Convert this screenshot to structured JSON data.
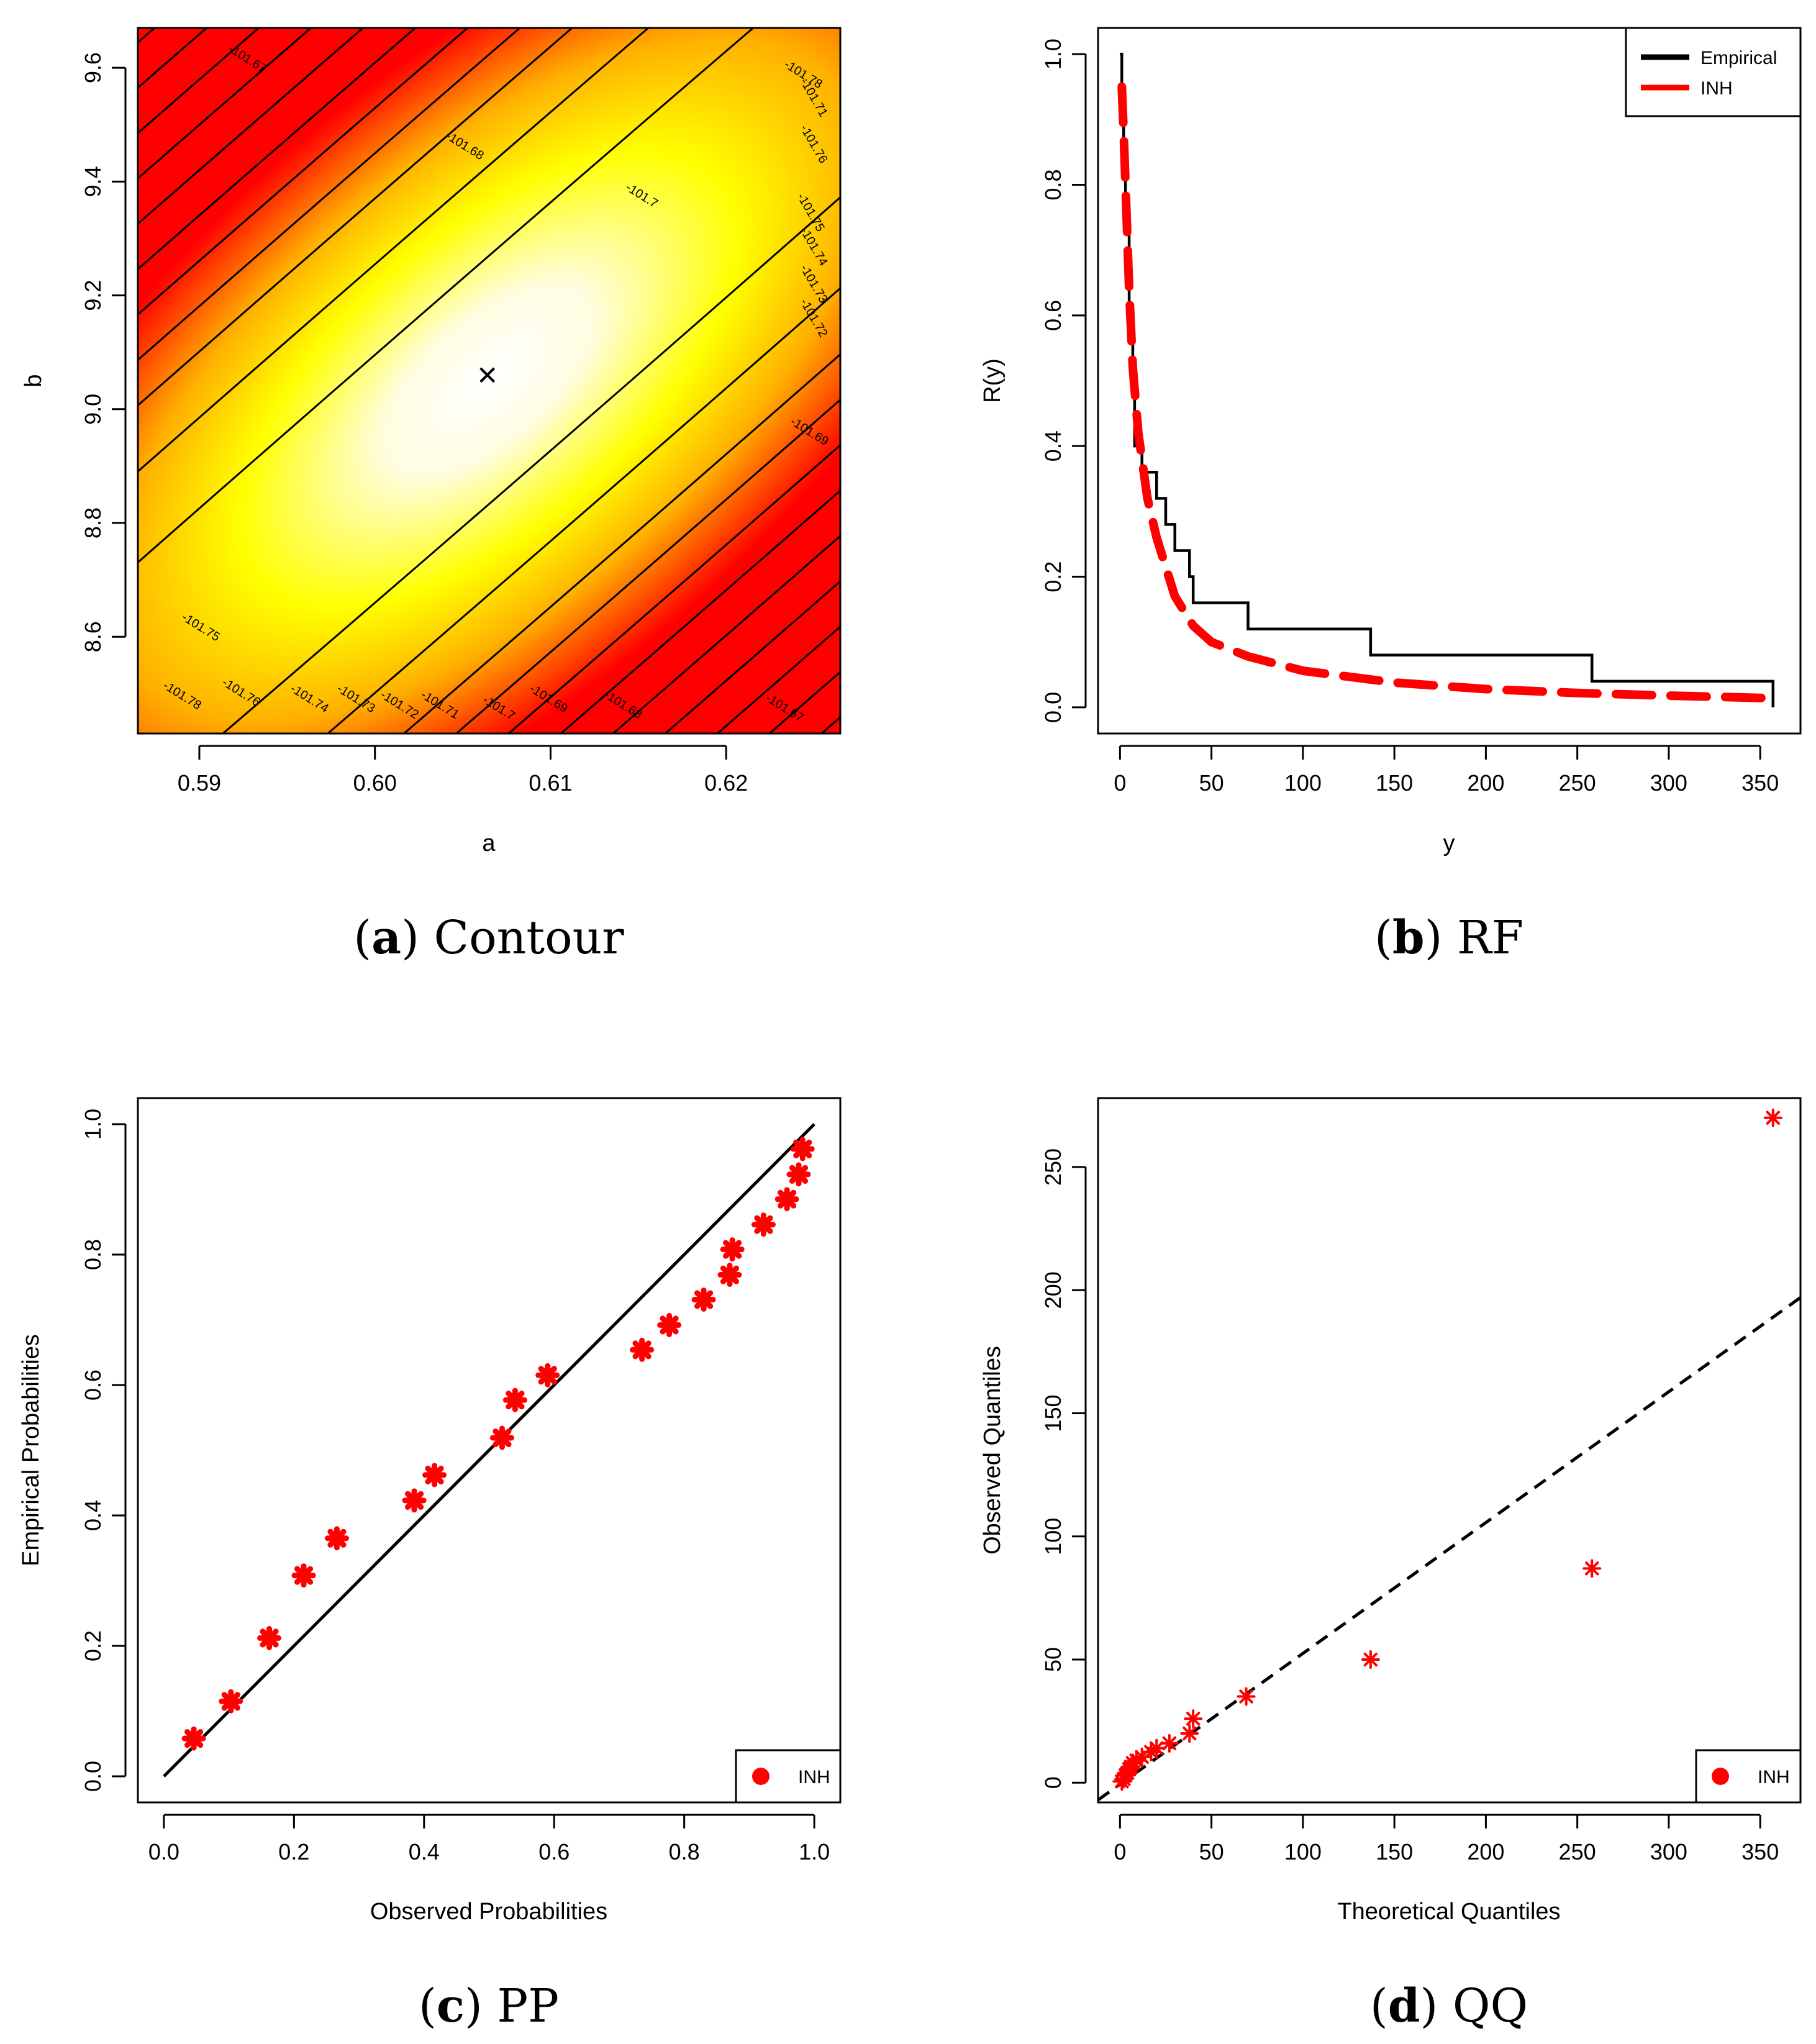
{
  "chart_data": [
    {
      "type": "contour",
      "caption": {
        "letter": "a",
        "text": "Contour"
      },
      "xlabel": "a",
      "ylabel": "b",
      "xlim": [
        0.5865,
        0.6265
      ],
      "ylim": [
        8.43,
        9.67
      ],
      "xticks": [
        0.59,
        0.6,
        0.61,
        0.62
      ],
      "yticks": [
        8.6,
        8.8,
        9.0,
        9.2,
        9.4,
        9.6
      ],
      "optimum": {
        "a": 0.6064,
        "b": 9.06
      },
      "colors": {
        "low": "#ffffff",
        "mid": "#ffff00",
        "high": "#ff0000"
      },
      "contour_labels": [
        "-101.67",
        "-101.68",
        "-101.69",
        "-101.7",
        "-101.71",
        "-101.72",
        "-101.73",
        "-101.74",
        "-101.75",
        "-101.76",
        "-101.78"
      ]
    },
    {
      "type": "line",
      "caption": {
        "letter": "b",
        "text": "RF"
      },
      "xlabel": "y",
      "ylabel": "R(y)",
      "xlim": [
        -12,
        372
      ],
      "ylim": [
        -0.04,
        1.04
      ],
      "xticks": [
        0,
        50,
        100,
        150,
        200,
        250,
        300,
        350
      ],
      "yticks": [
        0.0,
        0.2,
        0.4,
        0.6,
        0.8,
        1.0
      ],
      "legend_position": "top-right",
      "series": [
        {
          "name": "Empirical",
          "style": "step",
          "color": "#000000",
          "x": [
            1,
            2,
            3,
            5,
            7,
            8,
            9,
            12,
            14,
            17,
            20,
            25,
            30,
            38,
            40,
            70,
            137,
            258,
            357
          ],
          "y": [
            0.92,
            0.84,
            0.76,
            0.6,
            0.48,
            0.4,
            0.4,
            0.36,
            0.36,
            0.36,
            0.32,
            0.28,
            0.24,
            0.2,
            0.16,
            0.12,
            0.08,
            0.04,
            0.0
          ]
        },
        {
          "name": "INH",
          "style": "dashed",
          "color": "#ff0000",
          "x": [
            1,
            2,
            3,
            5,
            7,
            10,
            15,
            20,
            30,
            40,
            50,
            70,
            100,
            150,
            200,
            250,
            300,
            357
          ],
          "y": [
            0.95,
            0.88,
            0.8,
            0.64,
            0.52,
            0.42,
            0.32,
            0.26,
            0.17,
            0.125,
            0.1,
            0.078,
            0.056,
            0.038,
            0.028,
            0.022,
            0.018,
            0.014
          ]
        }
      ]
    },
    {
      "type": "scatter",
      "caption": {
        "letter": "c",
        "text": "PP"
      },
      "xlabel": "Observed Probabilities",
      "ylabel": "Empirical Probabilities",
      "xlim": [
        -0.04,
        1.04
      ],
      "ylim": [
        -0.04,
        1.04
      ],
      "xticks": [
        0.0,
        0.2,
        0.4,
        0.6,
        0.8,
        1.0
      ],
      "yticks": [
        0.0,
        0.2,
        0.4,
        0.6,
        0.8,
        1.0
      ],
      "legend_position": "bottom-right",
      "reference_line": {
        "x": [
          0,
          1
        ],
        "y": [
          0,
          1
        ]
      },
      "series": [
        {
          "name": "INH",
          "color": "#ff0000",
          "x": [
            0.046,
            0.103,
            0.162,
            0.215,
            0.266,
            0.385,
            0.416,
            0.52,
            0.54,
            0.59,
            0.735,
            0.777,
            0.83,
            0.87,
            0.874,
            0.922,
            0.958,
            0.976,
            0.982
          ],
          "y": [
            0.058,
            0.115,
            0.212,
            0.308,
            0.365,
            0.423,
            0.462,
            0.519,
            0.577,
            0.615,
            0.654,
            0.692,
            0.731,
            0.769,
            0.808,
            0.846,
            0.885,
            0.923,
            0.962
          ]
        }
      ]
    },
    {
      "type": "scatter",
      "caption": {
        "letter": "d",
        "text": "QQ"
      },
      "xlabel": "Theoretical Quantiles",
      "ylabel": "Observed Quantiles",
      "xlim": [
        -12,
        372
      ],
      "ylim": [
        -8,
        278
      ],
      "xticks": [
        0,
        50,
        100,
        150,
        200,
        250,
        300,
        350
      ],
      "yticks": [
        0,
        50,
        100,
        150,
        200,
        250
      ],
      "legend_position": "bottom-right",
      "reference_line": {
        "x": [
          -12,
          372
        ],
        "y": [
          -7.0,
          197.0
        ]
      },
      "series": [
        {
          "name": "INH",
          "color": "#ff0000",
          "x": [
            1,
            2,
            3,
            4,
            5,
            6,
            7,
            9,
            12,
            17,
            20,
            27,
            38,
            40,
            69,
            137,
            258,
            357
          ],
          "y": [
            0.5,
            1.5,
            3,
            4,
            5.5,
            6.5,
            8,
            9,
            10.5,
            12.5,
            14,
            16,
            20,
            26,
            35,
            50,
            87,
            270
          ]
        }
      ]
    }
  ]
}
